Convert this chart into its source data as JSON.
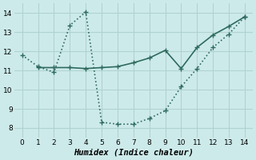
{
  "line1_x": [
    0,
    1,
    2,
    3,
    4,
    5,
    6,
    7,
    8,
    9,
    10,
    11,
    12,
    13,
    14
  ],
  "line1_y": [
    11.8,
    11.2,
    10.9,
    13.35,
    14.05,
    8.3,
    8.2,
    8.2,
    8.5,
    8.9,
    10.15,
    11.1,
    12.2,
    12.9,
    13.8
  ],
  "line2_x": [
    1,
    2,
    3,
    4,
    5,
    6,
    7,
    8,
    9,
    10,
    11,
    12,
    13,
    14
  ],
  "line2_y": [
    11.15,
    11.15,
    11.15,
    11.1,
    11.15,
    11.2,
    11.4,
    11.65,
    12.05,
    11.1,
    12.2,
    12.85,
    13.3,
    13.8
  ],
  "color": "#2e6b5e",
  "bg_color": "#cdeaea",
  "grid_color": "#afd4d0",
  "xlabel": "Humidex (Indice chaleur)",
  "xlim": [
    -0.5,
    14.5
  ],
  "ylim": [
    7.5,
    14.5
  ],
  "xticks": [
    0,
    1,
    2,
    3,
    4,
    5,
    6,
    7,
    8,
    9,
    10,
    11,
    12,
    13,
    14
  ],
  "yticks": [
    8,
    9,
    10,
    11,
    12,
    13,
    14
  ],
  "marker_size": 4,
  "marker_lw": 1.0,
  "line1_lw": 1.2,
  "line2_lw": 1.2
}
